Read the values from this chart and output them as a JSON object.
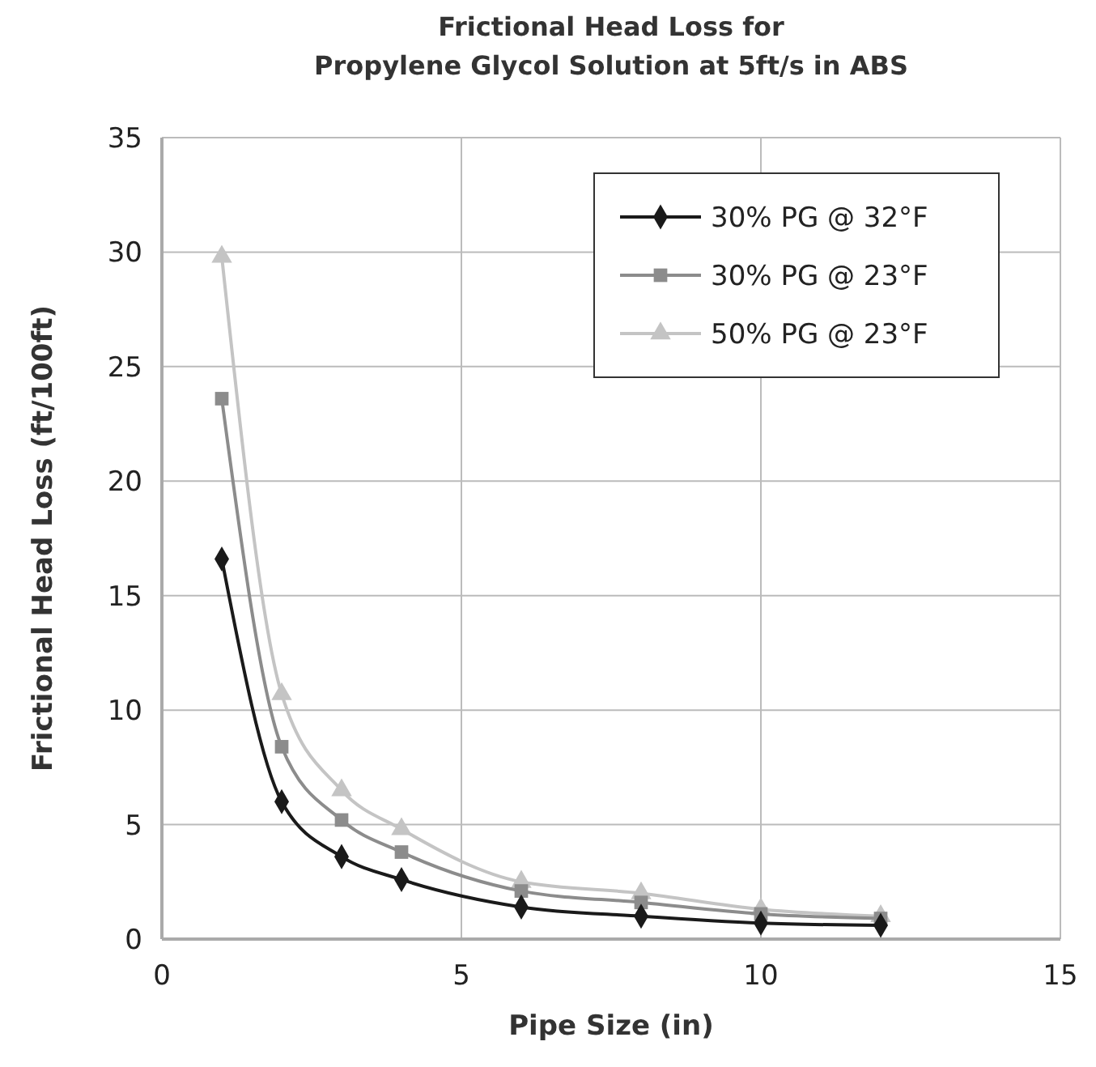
{
  "chart_data": {
    "type": "line",
    "title": "Frictional Head Loss for\nPropylene Glycol Solution at 5ft/s in ABS",
    "xlabel": "Pipe Size (in)",
    "ylabel": "Frictional Head Loss (ft/100ft)",
    "x": [
      1,
      2,
      3,
      4,
      6,
      8,
      10,
      12
    ],
    "series": [
      {
        "name": "30% PG @ 32°F",
        "color": "#1a1a1a",
        "marker": "diamond",
        "values": [
          16.6,
          6.0,
          3.6,
          2.6,
          1.4,
          1.0,
          0.7,
          0.6
        ]
      },
      {
        "name": "30% PG @ 23°F",
        "color": "#8c8c8c",
        "marker": "square",
        "values": [
          23.6,
          8.4,
          5.2,
          3.8,
          2.1,
          1.6,
          1.1,
          0.9
        ]
      },
      {
        "name": "50% PG @ 23°F",
        "color": "#c4c4c4",
        "marker": "triangle",
        "values": [
          29.8,
          10.7,
          6.5,
          4.8,
          2.5,
          2.0,
          1.3,
          1.0
        ]
      }
    ],
    "xlim": [
      0,
      15
    ],
    "xticks": [
      0,
      5,
      10,
      15
    ],
    "ylim": [
      0,
      35
    ],
    "yticks": [
      0,
      5,
      10,
      15,
      20,
      25,
      30,
      35
    ],
    "grid": true,
    "legend": "top right",
    "line_style": "solid"
  }
}
